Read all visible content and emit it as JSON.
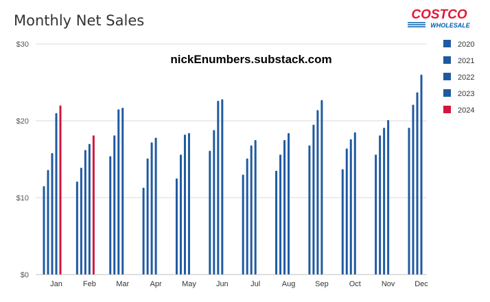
{
  "chart_data": {
    "type": "bar",
    "title": "Monthly Net Sales",
    "watermark": "nickEnumbers.substack.com",
    "logo": {
      "brand": "COSTCO",
      "sub": "WHOLESALE"
    },
    "categories": [
      "Jan",
      "Feb",
      "Mar",
      "Apr",
      "May",
      "Jun",
      "Jul",
      "Aug",
      "Sep",
      "Oct",
      "Nov",
      "Dec"
    ],
    "ylim": [
      0,
      30
    ],
    "yticks": [
      0,
      10,
      20,
      30
    ],
    "ytick_labels": [
      "$0",
      "$10",
      "$20",
      "$30"
    ],
    "grid": true,
    "legend_position": "right",
    "series": [
      {
        "name": "2020",
        "color": "#1f5aa0",
        "values": [
          11.5,
          12.1,
          15.4,
          11.3,
          12.5,
          16.1,
          13.0,
          13.5,
          16.8,
          13.7,
          15.6,
          19.1
        ]
      },
      {
        "name": "2021",
        "color": "#1f5aa0",
        "values": [
          13.6,
          13.9,
          18.1,
          15.1,
          15.6,
          18.8,
          15.1,
          15.6,
          19.5,
          16.4,
          18.1,
          22.1
        ]
      },
      {
        "name": "2022",
        "color": "#1f5aa0",
        "values": [
          15.8,
          16.2,
          21.5,
          17.2,
          18.2,
          22.6,
          16.8,
          17.5,
          21.4,
          17.6,
          19.1,
          23.7
        ]
      },
      {
        "name": "2023",
        "color": "#1f5aa0",
        "values": [
          21.0,
          17.0,
          21.7,
          17.8,
          18.4,
          22.8,
          17.5,
          18.4,
          22.7,
          18.5,
          20.1,
          26.0
        ]
      },
      {
        "name": "2024",
        "color": "#d4163c",
        "values": [
          22.0,
          18.1,
          null,
          null,
          null,
          null,
          null,
          null,
          null,
          null,
          null,
          null
        ]
      }
    ]
  }
}
